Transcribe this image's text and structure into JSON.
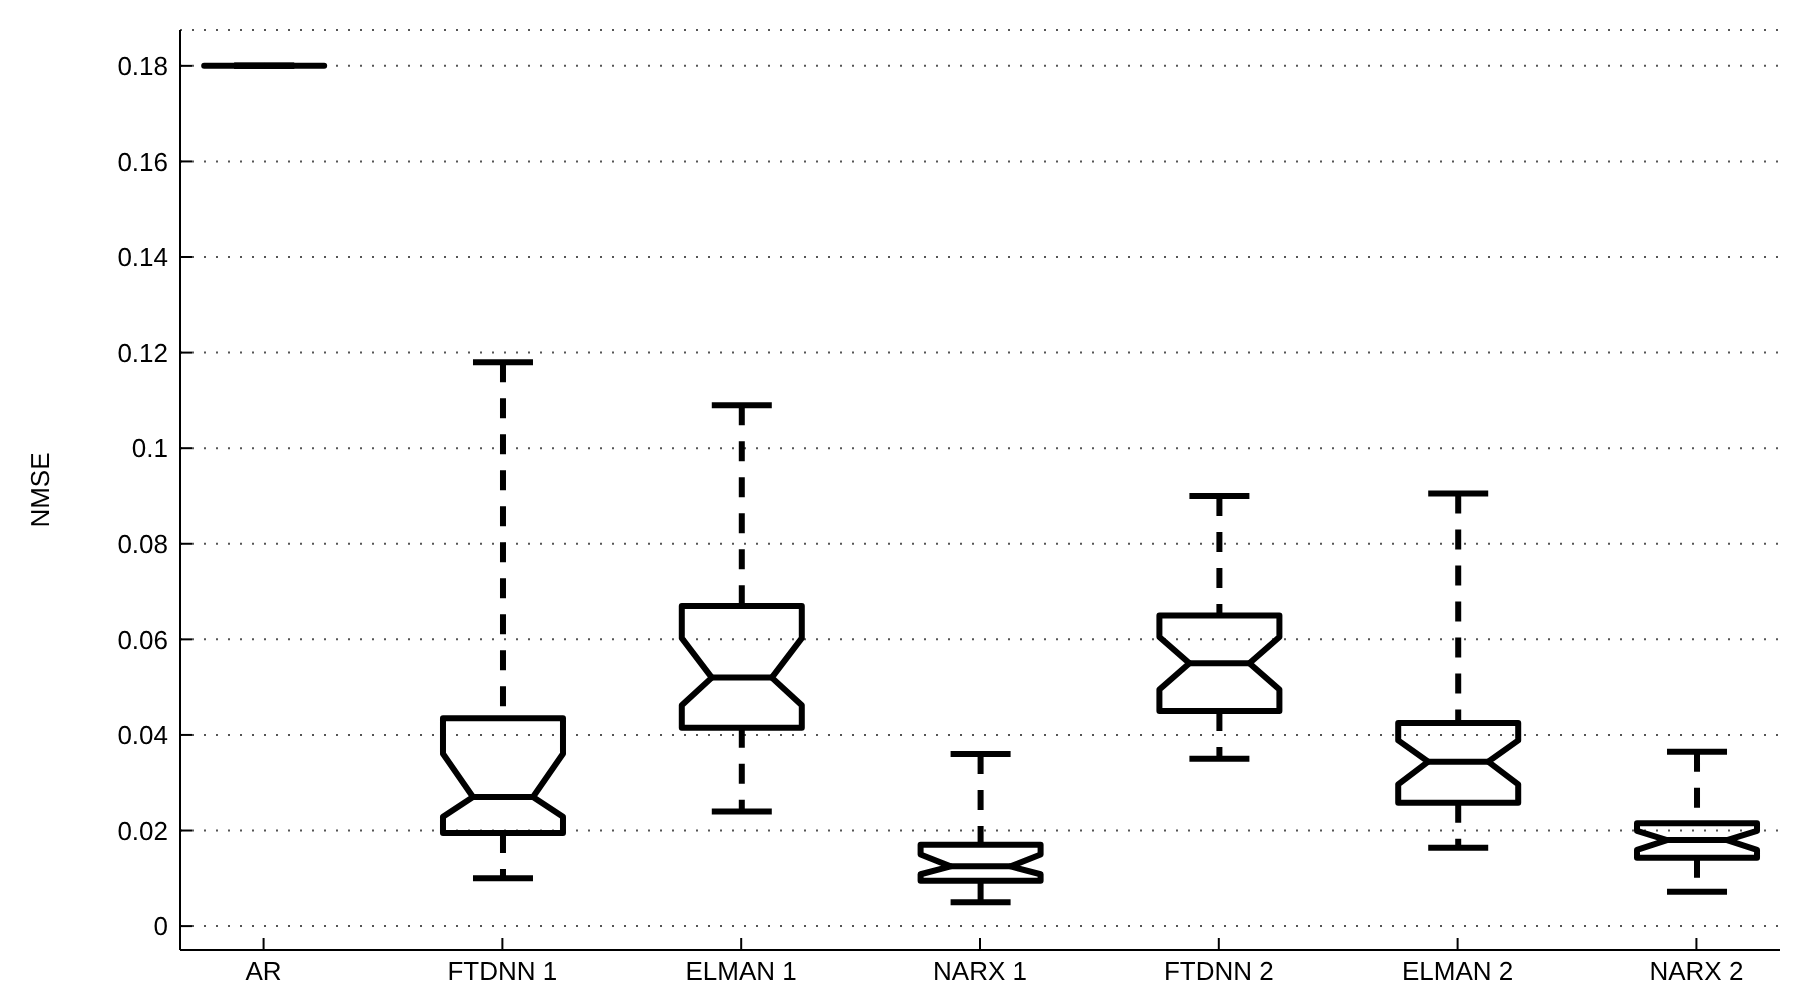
{
  "chart_data": {
    "type": "box",
    "ylabel": "NMSE",
    "categories": [
      "AR",
      "FTDNN 1",
      "ELMAN 1",
      "NARX 1",
      "FTDNN 2",
      "ELMAN 2",
      "NARX 2"
    ],
    "boxes": [
      {
        "low": 0.18,
        "q1": 0.18,
        "median": 0.18,
        "q3": 0.18,
        "high": 0.18
      },
      {
        "low": 0.01,
        "q1": 0.0195,
        "median": 0.027,
        "q3": 0.0435,
        "high": 0.118
      },
      {
        "low": 0.024,
        "q1": 0.0415,
        "median": 0.052,
        "q3": 0.067,
        "high": 0.109
      },
      {
        "low": 0.005,
        "q1": 0.0095,
        "median": 0.0125,
        "q3": 0.017,
        "high": 0.036
      },
      {
        "low": 0.035,
        "q1": 0.045,
        "median": 0.055,
        "q3": 0.065,
        "high": 0.09
      },
      {
        "low": 0.0164,
        "q1": 0.0258,
        "median": 0.0344,
        "q3": 0.0425,
        "high": 0.0905
      },
      {
        "low": 0.0072,
        "q1": 0.0143,
        "median": 0.018,
        "q3": 0.0215,
        "high": 0.0365
      }
    ],
    "color": "#000000",
    "ylim": [
      -0.005,
      0.1875
    ],
    "yticks": [
      0,
      0.02,
      0.04,
      0.06,
      0.08,
      0.1,
      0.12,
      0.14,
      0.16,
      0.18
    ],
    "grid": "y"
  }
}
